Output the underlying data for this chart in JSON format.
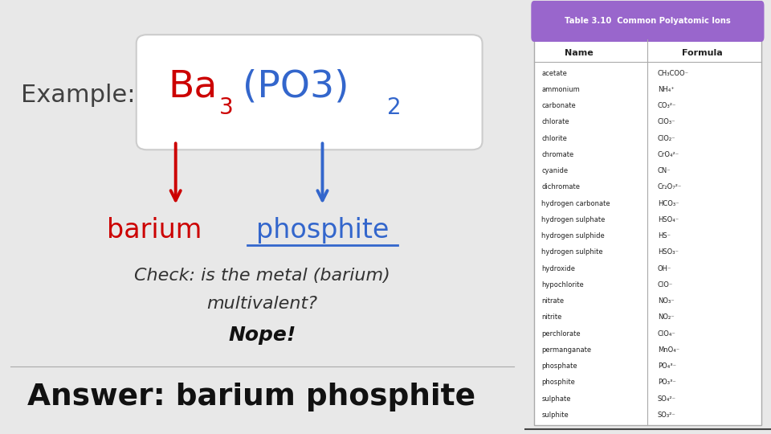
{
  "bg_color": "#e8e8e8",
  "left_panel_bg": "#e8e8e8",
  "right_panel_bg": "#ffffff",
  "example_label": "Example:",
  "example_color": "#404040",
  "formula_Ba_color": "#cc0000",
  "formula_PO3_color": "#3366cc",
  "barium_label": "barium",
  "barium_color": "#cc0000",
  "phosphite_label": "phosphite",
  "phosphite_color": "#3366cc",
  "check_text_line1": "Check: is the metal (barium)",
  "check_text_line2": "multivalent?",
  "nope_text": "Nope!",
  "answer_text": "Answer: barium phosphite",
  "table_title": "Table 3.10  Common Polyatomic Ions",
  "table_header_bg": "#9966cc",
  "table_col1_header": "Name",
  "table_col2_header": "Formula",
  "table_rows": [
    [
      "acetate",
      "CH₃COO⁻"
    ],
    [
      "ammonium",
      "NH₄⁺"
    ],
    [
      "carbonate",
      "CO₃²⁻"
    ],
    [
      "chlorate",
      "ClO₃⁻"
    ],
    [
      "chlorite",
      "ClO₂⁻"
    ],
    [
      "chromate",
      "CrO₄²⁻"
    ],
    [
      "cyanide",
      "CN⁻"
    ],
    [
      "dichromate",
      "Cr₂O₇²⁻"
    ],
    [
      "hydrogen carbonate",
      "HCO₃⁻"
    ],
    [
      "hydrogen sulphate",
      "HSO₄⁻"
    ],
    [
      "hydrogen sulphide",
      "HS⁻"
    ],
    [
      "hydrogen sulphite",
      "HSO₃⁻"
    ],
    [
      "hydroxide",
      "OH⁻"
    ],
    [
      "hypochlorite",
      "ClO⁻"
    ],
    [
      "nitrate",
      "NO₃⁻"
    ],
    [
      "nitrite",
      "NO₂⁻"
    ],
    [
      "perchlorate",
      "ClO₄⁻"
    ],
    [
      "permanganate",
      "MnO₄⁻"
    ],
    [
      "phosphate",
      "PO₄³⁻"
    ],
    [
      "phosphite",
      "PO₃³⁻"
    ],
    [
      "sulphate",
      "SO₄²⁻"
    ],
    [
      "sulphite",
      "SO₃²⁻"
    ]
  ]
}
